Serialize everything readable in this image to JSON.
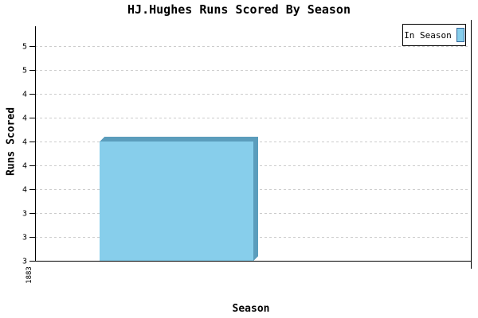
{
  "chart_data": {
    "type": "bar",
    "title": "HJ.Hughes Runs Scored By Season",
    "xlabel": "Season",
    "ylabel": "Runs Scored",
    "categories": [
      "1883"
    ],
    "series": [
      {
        "name": "In Season",
        "values": [
          4
        ]
      }
    ],
    "ylim": [
      3.0,
      4.95
    ],
    "yticks": [
      {
        "value": 3.0,
        "label": "3"
      },
      {
        "value": 3.2,
        "label": "3"
      },
      {
        "value": 3.4,
        "label": "3"
      },
      {
        "value": 3.6,
        "label": "4"
      },
      {
        "value": 3.8,
        "label": "4"
      },
      {
        "value": 4.0,
        "label": "4"
      },
      {
        "value": 4.2,
        "label": "4"
      },
      {
        "value": 4.4,
        "label": "4"
      },
      {
        "value": 4.6,
        "label": "5"
      },
      {
        "value": 4.8,
        "label": "5"
      }
    ],
    "grid": "horizontal-dashed",
    "legend_position": "top-right",
    "bar_style": "3d",
    "colors": {
      "bar_front": "#87CEEB",
      "bar_side": "#5B9DBC",
      "grid": "#CCCCCC",
      "axis": "#000000",
      "swatch_border": "#336699",
      "background": "#FFFFFF"
    }
  }
}
